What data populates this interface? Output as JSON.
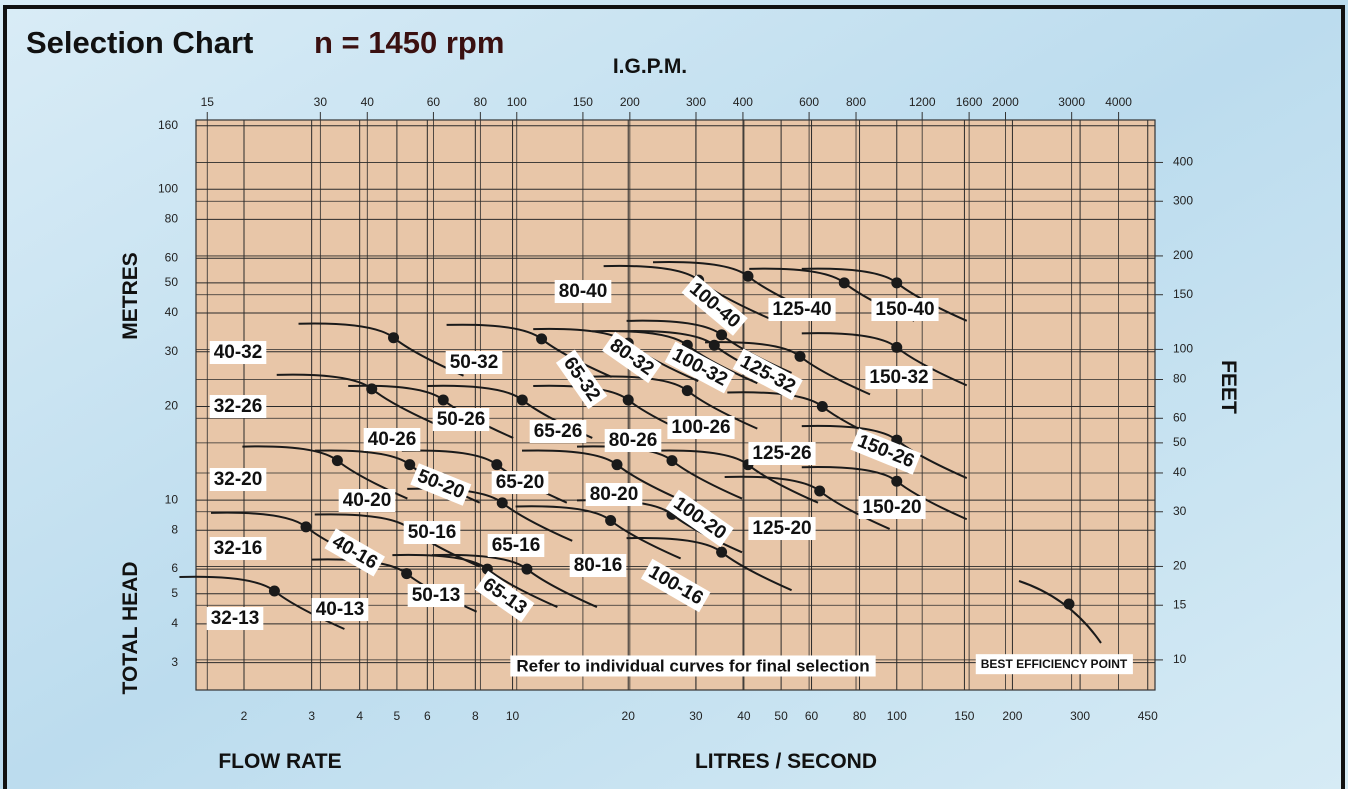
{
  "chart_data": {
    "type": "selection",
    "title": "Selection Chart",
    "subtitle": "n = 1450 rpm",
    "x_top_label": "I.G.P.M.",
    "y_label_top": "METRES",
    "y_label_bottom": "TOTAL HEAD",
    "y2_label": "FEET",
    "x_label_left": "FLOW RATE",
    "x_label": "LITRES / SECOND",
    "note": "Refer to individual curves for final selection",
    "legend": "BEST EFFICIENCY POINT",
    "xscale": "log",
    "yscale": "log",
    "grid": true,
    "plot_color": "#e8c6a8",
    "mark_color": "#1a1a1a",
    "xlim": [
      1.5,
      470
    ],
    "xticks": [
      2,
      3,
      4,
      5,
      6,
      8,
      10,
      20,
      30,
      40,
      50,
      60,
      80,
      100,
      150,
      200,
      300,
      450
    ],
    "x2lim": [
      14,
      5000
    ],
    "x2ticks": [
      15,
      30,
      40,
      60,
      80,
      100,
      150,
      200,
      300,
      400,
      600,
      800,
      1200,
      1600,
      2000,
      3000,
      4000
    ],
    "ylim": [
      2.45,
      167
    ],
    "yticks": [
      3,
      4,
      5,
      6,
      8,
      10,
      20,
      30,
      40,
      50,
      60,
      80,
      100,
      160
    ],
    "y2lim": [
      8.0,
      548
    ],
    "y2ticks": [
      10,
      15,
      20,
      30,
      40,
      50,
      60,
      80,
      100,
      150,
      200,
      300,
      400
    ],
    "models": [
      "32-13",
      "32-16",
      "32-20",
      "32-26",
      "40-32",
      "40-26",
      "40-20",
      "40-16",
      "40-13",
      "50-32",
      "50-26",
      "50-20",
      "50-16",
      "50-13",
      "65-32",
      "65-26",
      "65-20",
      "65-16",
      "65-13",
      "80-40",
      "80-32",
      "80-26",
      "80-20",
      "80-16",
      "100-40",
      "100-32",
      "100-26",
      "100-20",
      "100-16",
      "125-40",
      "125-32",
      "125-26",
      "125-20",
      "150-40",
      "150-32",
      "150-26",
      "150-20"
    ],
    "bep_points": {
      "x": [
        2.4,
        2.9,
        3.5,
        4.3,
        4.9,
        6.6,
        5.4,
        5.4,
        5.3,
        11.9,
        10.6,
        9.1,
        9.4,
        8.6,
        20,
        20,
        18.7,
        18,
        10.9,
        30.5,
        28.5,
        28.5,
        26,
        26,
        41,
        35,
        33.5,
        41,
        35,
        73,
        56,
        64,
        63,
        100,
        100,
        100,
        100
      ],
      "y": [
        5.1,
        8.2,
        13.4,
        22.8,
        33.3,
        21,
        13,
        8.1,
        5.8,
        33,
        21,
        13,
        9.8,
        6,
        32,
        21,
        13,
        8.6,
        6,
        51,
        31.5,
        22.5,
        13.4,
        9,
        52.5,
        34,
        31.5,
        13,
        6.8,
        50,
        29,
        20,
        10.7,
        50,
        31,
        15.6,
        11.5
      ]
    }
  }
}
